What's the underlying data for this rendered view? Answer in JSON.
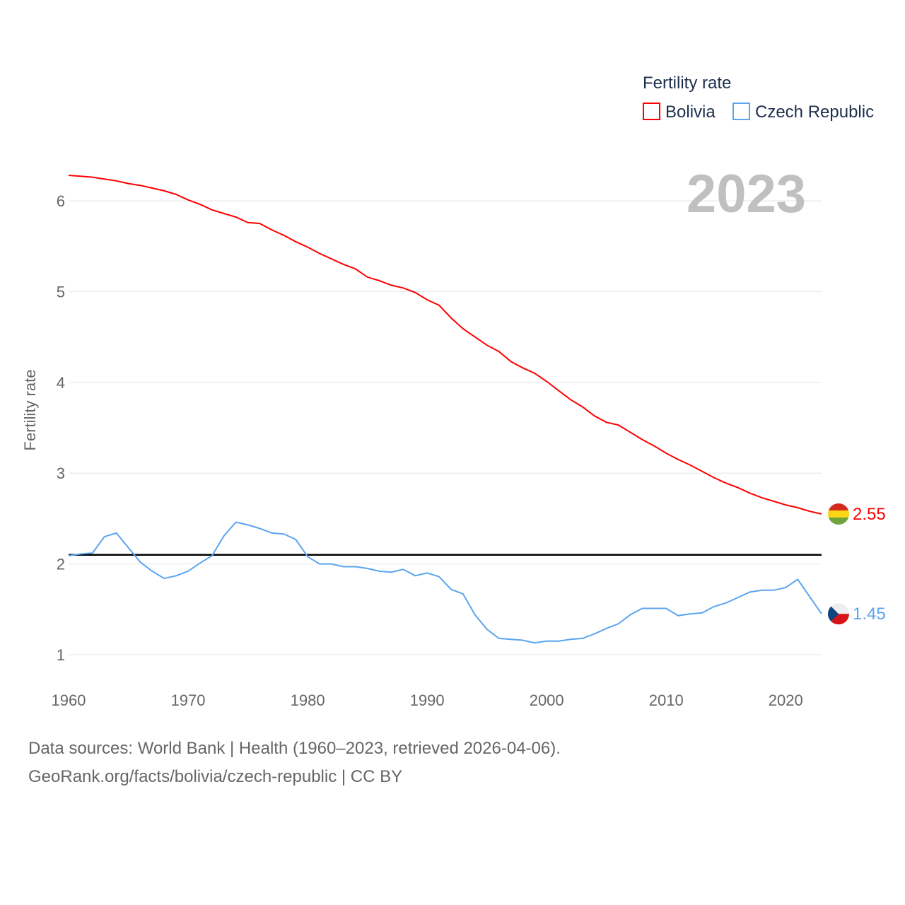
{
  "chart_data": {
    "type": "line",
    "title": "",
    "year_label": "2023",
    "ylabel": "Fertility rate",
    "xlabel": "",
    "xlim": [
      1960,
      2023
    ],
    "ylim": [
      0.5,
      6.5
    ],
    "yticks": [
      1,
      2,
      3,
      4,
      5,
      6
    ],
    "xticks": [
      1960,
      1970,
      1980,
      1990,
      2000,
      2010,
      2020
    ],
    "grid": true,
    "legend": {
      "title": "Fertility rate",
      "position": "top-right"
    },
    "reference_line": 2.1,
    "x": [
      1960,
      1961,
      1962,
      1963,
      1964,
      1965,
      1966,
      1967,
      1968,
      1969,
      1970,
      1971,
      1972,
      1973,
      1974,
      1975,
      1976,
      1977,
      1978,
      1979,
      1980,
      1981,
      1982,
      1983,
      1984,
      1985,
      1986,
      1987,
      1988,
      1989,
      1990,
      1991,
      1992,
      1993,
      1994,
      1995,
      1996,
      1997,
      1998,
      1999,
      2000,
      2001,
      2002,
      2003,
      2004,
      2005,
      2006,
      2007,
      2008,
      2009,
      2010,
      2011,
      2012,
      2013,
      2014,
      2015,
      2016,
      2017,
      2018,
      2019,
      2020,
      2021,
      2022,
      2023
    ],
    "series": [
      {
        "name": "Bolivia",
        "color": "#ff0000",
        "end_label": "2.55",
        "values": [
          6.28,
          6.27,
          6.26,
          6.24,
          6.22,
          6.19,
          6.17,
          6.14,
          6.11,
          6.07,
          6.01,
          5.96,
          5.9,
          5.86,
          5.82,
          5.76,
          5.75,
          5.68,
          5.62,
          5.55,
          5.49,
          5.42,
          5.36,
          5.3,
          5.25,
          5.16,
          5.12,
          5.07,
          5.04,
          4.99,
          4.91,
          4.85,
          4.71,
          4.59,
          4.5,
          4.41,
          4.34,
          4.23,
          4.16,
          4.1,
          4.01,
          3.91,
          3.81,
          3.73,
          3.63,
          3.56,
          3.53,
          3.45,
          3.37,
          3.3,
          3.22,
          3.15,
          3.09,
          3.02,
          2.95,
          2.89,
          2.84,
          2.78,
          2.73,
          2.69,
          2.65,
          2.62,
          2.58,
          2.55
        ]
      },
      {
        "name": "Czech Republic",
        "color": "#5aa5ef",
        "end_label": "1.45",
        "values": [
          2.09,
          2.11,
          2.12,
          2.3,
          2.34,
          2.18,
          2.02,
          1.92,
          1.84,
          1.87,
          1.92,
          2.01,
          2.09,
          2.31,
          2.46,
          2.43,
          2.39,
          2.34,
          2.33,
          2.27,
          2.08,
          2.0,
          2.0,
          1.97,
          1.97,
          1.95,
          1.92,
          1.91,
          1.94,
          1.87,
          1.9,
          1.86,
          1.72,
          1.67,
          1.44,
          1.28,
          1.18,
          1.17,
          1.16,
          1.13,
          1.15,
          1.15,
          1.17,
          1.18,
          1.23,
          1.29,
          1.34,
          1.44,
          1.51,
          1.51,
          1.51,
          1.43,
          1.45,
          1.46,
          1.53,
          1.57,
          1.63,
          1.69,
          1.71,
          1.71,
          1.74,
          1.83,
          1.64,
          1.45
        ]
      }
    ]
  },
  "footer": {
    "line1": "Data sources: World Bank | Health (1960–2023, retrieved 2026-04-06).",
    "line2": "GeoRank.org/facts/bolivia/czech-republic | CC BY"
  }
}
